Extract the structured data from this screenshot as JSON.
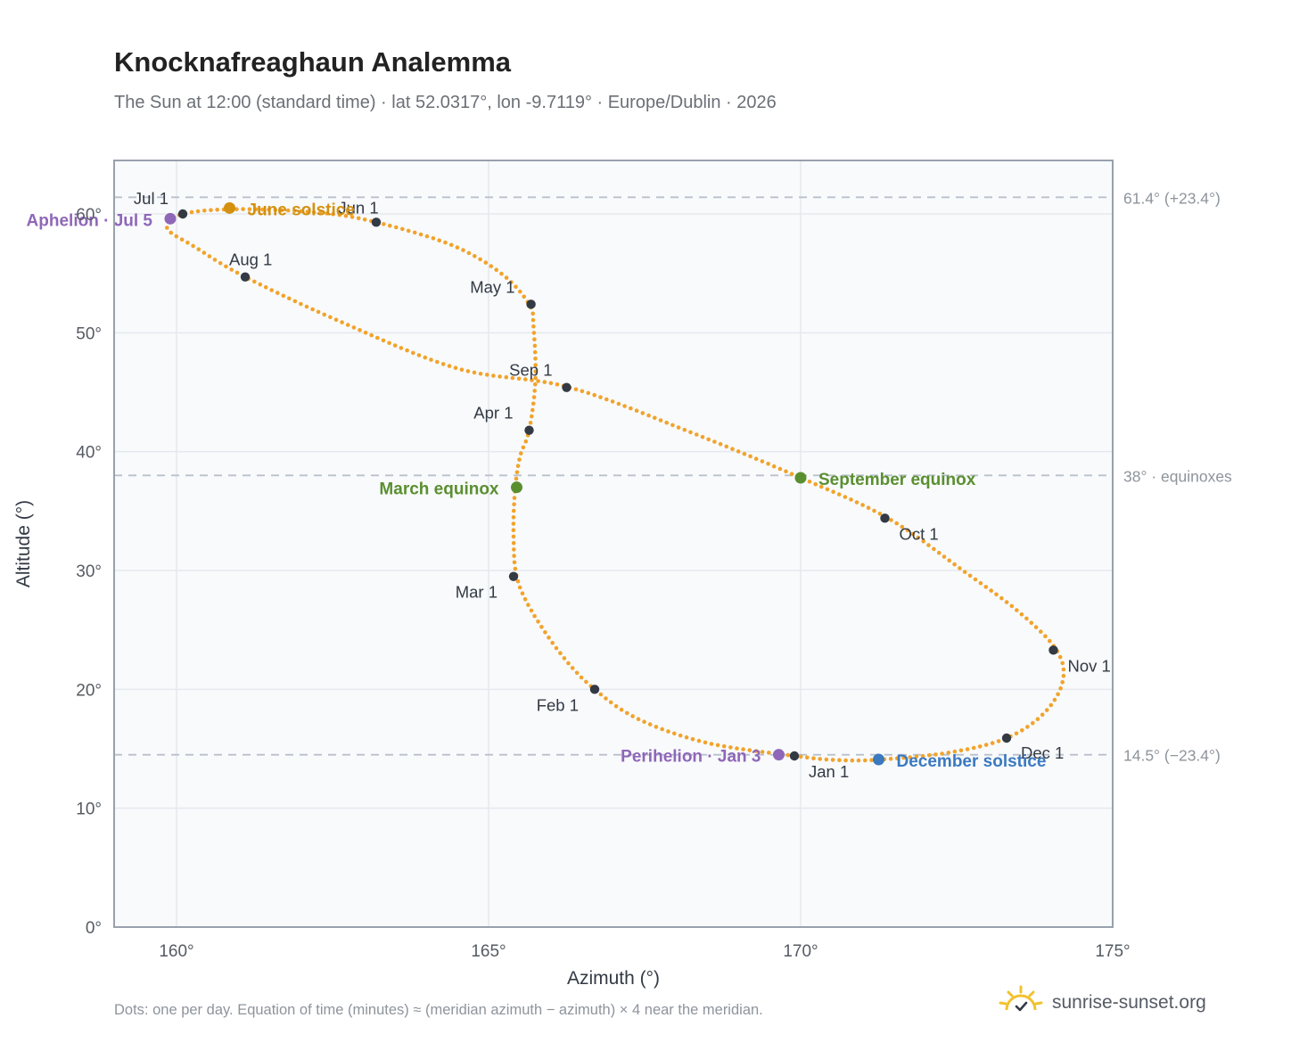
{
  "title": "Knocknafreaghaun Analemma",
  "subtitle": "The Sun at 12:00 (standard time) · lat 52.0317°, lon -9.7119° · Europe/Dublin · 2026",
  "footnote": "Dots: one per day. Equation of time (minutes) ≈ (meridian azimuth − azimuth) × 4 near the meridian.",
  "brand": {
    "name": "sunrise-sunset.org",
    "icon": "sun-check-icon"
  },
  "colors": {
    "path": "#f2a32a",
    "month_dot": "#333a44",
    "solstice_june": "#d4900f",
    "solstice_december": "#3b79c0",
    "equinox": "#5a8f30",
    "apsis": "#8f67b8",
    "plot_bg": "#f8fafc",
    "grid": "#e5e9ef",
    "axis": "#98a1ad",
    "reference_line": "#b9c1cb"
  },
  "chart_data": {
    "type": "scatter",
    "xlabel": "Azimuth (°)",
    "ylabel": "Altitude (°)",
    "xlim": [
      159,
      175
    ],
    "ylim": [
      0,
      64.5
    ],
    "x_ticks": [
      160,
      165,
      170,
      175
    ],
    "x_tick_labels": [
      "160°",
      "165°",
      "170°",
      "175°"
    ],
    "y_ticks": [
      0,
      10,
      20,
      30,
      40,
      50,
      60
    ],
    "y_tick_labels": [
      "0°",
      "10°",
      "20°",
      "30°",
      "40°",
      "50°",
      "60°"
    ],
    "grid": true,
    "reference_lines": [
      {
        "y": 61.4,
        "label": "61.4° (+23.4°)"
      },
      {
        "y": 38.0,
        "label": "38° · equinoxes"
      },
      {
        "y": 14.5,
        "label": "14.5° (−23.4°)"
      }
    ],
    "path_anchors": {
      "x": [
        169.9,
        168.5,
        167.4,
        166.7,
        166.2,
        165.7,
        165.45,
        165.4,
        165.42,
        165.5,
        165.65,
        165.75,
        165.72,
        165.65,
        165.2,
        164.4,
        163.2,
        162.3,
        161.0,
        160.1,
        159.85,
        160.3,
        161.1,
        162.6,
        164.5,
        166.3,
        168.3,
        170.0,
        171.4,
        172.6,
        173.5,
        174.1,
        174.2,
        173.9,
        173.3,
        172.4,
        171.3,
        170.6,
        169.9
      ],
      "y": [
        14.4,
        15.5,
        17.5,
        20.0,
        22.7,
        26.5,
        29.5,
        33.0,
        36.5,
        39.5,
        41.8,
        46.0,
        50.5,
        52.4,
        55.0,
        57.4,
        59.3,
        60.1,
        60.4,
        60.0,
        58.8,
        57.2,
        54.7,
        51.0,
        47.0,
        45.4,
        41.5,
        37.8,
        34.4,
        30.0,
        26.5,
        23.3,
        20.7,
        18.0,
        15.9,
        14.7,
        14.1,
        14.05,
        14.4
      ]
    },
    "day_count": 365,
    "month_markers": [
      {
        "label": "Jan 1",
        "x": 169.9,
        "y": 14.4
      },
      {
        "label": "Feb 1",
        "x": 166.7,
        "y": 20.0
      },
      {
        "label": "Mar 1",
        "x": 165.4,
        "y": 29.5
      },
      {
        "label": "Apr 1",
        "x": 165.65,
        "y": 41.8
      },
      {
        "label": "May 1",
        "x": 165.68,
        "y": 52.4
      },
      {
        "label": "Jun 1",
        "x": 163.2,
        "y": 59.3
      },
      {
        "label": "Jul 1",
        "x": 160.1,
        "y": 60.0
      },
      {
        "label": "Aug 1",
        "x": 161.1,
        "y": 54.7
      },
      {
        "label": "Sep 1",
        "x": 166.25,
        "y": 45.4
      },
      {
        "label": "Oct 1",
        "x": 171.35,
        "y": 34.4
      },
      {
        "label": "Nov 1",
        "x": 174.05,
        "y": 23.3
      },
      {
        "label": "Dec 1",
        "x": 173.3,
        "y": 15.9
      }
    ],
    "events": [
      {
        "label": "June solstice",
        "x": 160.85,
        "y": 60.5,
        "kind": "solstice_june"
      },
      {
        "label": "December solstice",
        "x": 171.25,
        "y": 14.1,
        "kind": "solstice_december"
      },
      {
        "label": "March equinox",
        "x": 165.45,
        "y": 37.0,
        "kind": "equinox"
      },
      {
        "label": "September equinox",
        "x": 170.0,
        "y": 37.8,
        "kind": "equinox"
      },
      {
        "label": "Aphelion · Jul 5",
        "x": 159.9,
        "y": 59.6,
        "kind": "apsis"
      },
      {
        "label": "Perihelion · Jan 3",
        "x": 169.65,
        "y": 14.5,
        "kind": "apsis"
      }
    ]
  }
}
